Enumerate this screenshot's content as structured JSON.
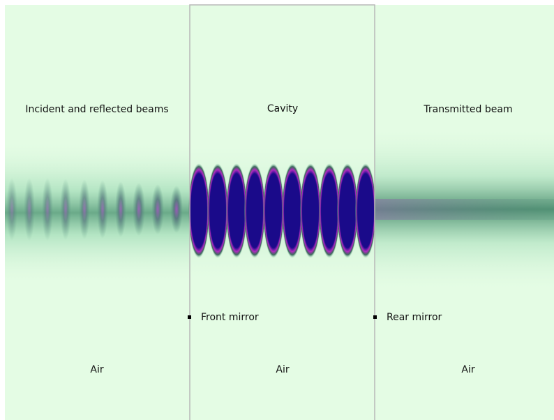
{
  "regions": [
    {
      "title": "Incident and reflected beams",
      "medium": "Air"
    },
    {
      "title": "Cavity",
      "medium": "Air"
    },
    {
      "title": "Transmitted beam",
      "medium": "Air"
    }
  ],
  "mirrors": [
    {
      "label": "Front mirror"
    },
    {
      "label": "Rear mirror"
    }
  ]
}
